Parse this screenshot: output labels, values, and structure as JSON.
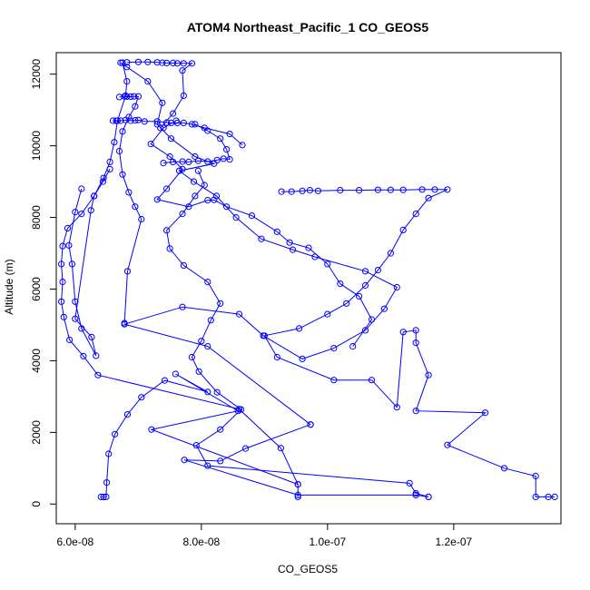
{
  "chart_data": {
    "type": "line",
    "title": "ATOM4 Northeast_Pacific_1 CO_GEOS5",
    "xlabel": "CO_GEOS5",
    "ylabel": "Altitude (m)",
    "xlim": [
      5.7e-08,
      1.37e-07
    ],
    "ylim": [
      -550,
      12600
    ],
    "x_ticks": [
      6e-08,
      8e-08,
      1e-07,
      1.2e-07
    ],
    "x_tick_labels": [
      "6.0e-08",
      "8.0e-08",
      "1.0e-07",
      "1.2e-07"
    ],
    "y_ticks": [
      0,
      2000,
      4000,
      6000,
      8000,
      10000,
      12000
    ],
    "y_tick_labels": [
      "0",
      "2000",
      "4000",
      "6000",
      "8000",
      "10000",
      "12000"
    ],
    "grid": false,
    "series_color": "#0000ff",
    "marker": "open-circle",
    "series": [
      {
        "points": [
          [
            6.41e-08,
            200
          ],
          [
            6.45e-08,
            200
          ],
          [
            6.49e-08,
            200
          ],
          [
            6.5e-08,
            600
          ],
          [
            6.53e-08,
            1400
          ],
          [
            6.63e-08,
            1950
          ],
          [
            6.83e-08,
            2500
          ],
          [
            7.05e-08,
            2980
          ],
          [
            7.42e-08,
            3450
          ],
          [
            8.1e-08,
            3130
          ],
          [
            7.59e-08,
            3630
          ],
          [
            8.58e-08,
            2600
          ],
          [
            7.21e-08,
            2080
          ],
          [
            9.53e-08,
            550
          ],
          [
            9.53e-08,
            200
          ]
        ]
      },
      {
        "points": [
          [
            9.53e-08,
            550
          ],
          [
            9.26e-08,
            1560
          ],
          [
            8.6e-08,
            2650
          ],
          [
            6.36e-08,
            3600
          ],
          [
            6.13e-08,
            4130
          ],
          [
            5.91e-08,
            4580
          ],
          [
            5.82e-08,
            5220
          ],
          [
            5.78e-08,
            5650
          ],
          [
            5.8e-08,
            6200
          ],
          [
            5.78e-08,
            6700
          ],
          [
            5.8e-08,
            7200
          ],
          [
            5.88e-08,
            7700
          ],
          [
            6.1e-08,
            8100
          ],
          [
            6.3e-08,
            8600
          ],
          [
            6.45e-08,
            9100
          ],
          [
            6.55e-08,
            9550
          ],
          [
            6.62e-08,
            10100
          ],
          [
            6.67e-08,
            10700
          ],
          [
            6.8e-08,
            11400
          ],
          [
            6.82e-08,
            11800
          ],
          [
            6.75e-08,
            12320
          ]
        ]
      },
      {
        "points": [
          [
            6.72e-08,
            12320
          ],
          [
            6.82e-08,
            12200
          ],
          [
            7.15e-08,
            11800
          ],
          [
            7.38e-08,
            11200
          ],
          [
            7.3e-08,
            10600
          ],
          [
            7.52e-08,
            10200
          ],
          [
            7.9e-08,
            9700
          ],
          [
            8.2e-08,
            9500
          ],
          [
            7.65e-08,
            9300
          ],
          [
            7.88e-08,
            9000
          ],
          [
            8.24e-08,
            8600
          ],
          [
            8.55e-08,
            8000
          ],
          [
            8.95e-08,
            7400
          ],
          [
            9.45e-08,
            7100
          ],
          [
            9.8e-08,
            6900
          ],
          [
            1.06e-07,
            6500
          ],
          [
            1.11e-07,
            6050
          ],
          [
            1.09e-07,
            5450
          ],
          [
            1.06e-07,
            4850
          ],
          [
            1.01e-07,
            4350
          ],
          [
            9.6e-08,
            4050
          ],
          [
            8.98e-08,
            4700
          ],
          [
            8.6e-08,
            5300
          ],
          [
            7.7e-08,
            5500
          ],
          [
            6.78e-08,
            5020
          ],
          [
            8.1e-08,
            4400
          ],
          [
            9.73e-08,
            2220
          ]
        ]
      },
      {
        "points": [
          [
            9.73e-08,
            2220
          ],
          [
            8.7e-08,
            1550
          ],
          [
            8.3e-08,
            1200
          ],
          [
            7.73e-08,
            1230
          ],
          [
            9.53e-08,
            250
          ],
          [
            1.14e-07,
            250
          ],
          [
            1.16e-07,
            200
          ]
        ]
      },
      {
        "points": [
          [
            1.16e-07,
            200
          ],
          [
            1.14e-07,
            300
          ],
          [
            1.13e-07,
            580
          ],
          [
            8.1e-08,
            1070
          ],
          [
            7.92e-08,
            1640
          ],
          [
            8.3e-08,
            2080
          ],
          [
            8.63e-08,
            2640
          ],
          [
            8.25e-08,
            3120
          ],
          [
            7.96e-08,
            3700
          ],
          [
            7.85e-08,
            4100
          ],
          [
            8e-08,
            4550
          ],
          [
            8.15e-08,
            5130
          ],
          [
            8.3e-08,
            5600
          ],
          [
            8.1e-08,
            6200
          ],
          [
            7.72e-08,
            6660
          ],
          [
            7.5e-08,
            7130
          ],
          [
            7.45e-08,
            7640
          ],
          [
            7.7e-08,
            8100
          ],
          [
            7.9e-08,
            8600
          ],
          [
            8.05e-08,
            8900
          ],
          [
            7.95e-08,
            9300
          ]
        ]
      },
      {
        "points": [
          [
            7.4e-08,
            9520
          ],
          [
            7.55e-08,
            9550
          ],
          [
            7.7e-08,
            9560
          ],
          [
            7.8e-08,
            9550
          ],
          [
            7.95e-08,
            9580
          ],
          [
            8.1e-08,
            9560
          ],
          [
            8.25e-08,
            9600
          ],
          [
            8.35e-08,
            9640
          ],
          [
            8.45e-08,
            9620
          ],
          [
            8.4e-08,
            9900
          ],
          [
            8.3e-08,
            10200
          ],
          [
            8.1e-08,
            10420
          ],
          [
            7.9e-08,
            10600
          ]
        ]
      },
      {
        "points": [
          [
            9.27e-08,
            8720
          ],
          [
            9.43e-08,
            8720
          ],
          [
            9.6e-08,
            8740
          ],
          [
            9.72e-08,
            8760
          ],
          [
            9.85e-08,
            8740
          ],
          [
            1.02e-07,
            8760
          ],
          [
            1.05e-07,
            8760
          ],
          [
            1.08e-07,
            8770
          ],
          [
            1.1e-07,
            8770
          ],
          [
            1.12e-07,
            8770
          ],
          [
            1.15e-07,
            8780
          ],
          [
            1.17e-07,
            8780
          ],
          [
            1.19e-07,
            8780
          ],
          [
            1.16e-07,
            8540
          ],
          [
            1.14e-07,
            8100
          ],
          [
            1.12e-07,
            7650
          ],
          [
            1.1e-07,
            7000
          ],
          [
            1.08e-07,
            6530
          ],
          [
            1.06e-07,
            6100
          ],
          [
            1.03e-07,
            5600
          ],
          [
            1e-07,
            5300
          ],
          [
            9.55e-08,
            4900
          ],
          [
            9e-08,
            4700
          ],
          [
            9.2e-08,
            4100
          ],
          [
            1.01e-07,
            3460
          ],
          [
            1.07e-07,
            3460
          ],
          [
            1.11e-07,
            2700
          ],
          [
            1.12e-07,
            4800
          ],
          [
            1.14e-07,
            4850
          ],
          [
            1.14e-07,
            4500
          ],
          [
            1.16e-07,
            3600
          ],
          [
            1.14e-07,
            2600
          ],
          [
            1.25e-07,
            2550
          ],
          [
            1.19e-07,
            1650
          ],
          [
            1.28e-07,
            1000
          ],
          [
            1.33e-07,
            780
          ],
          [
            1.33e-07,
            200
          ],
          [
            1.35e-07,
            200
          ],
          [
            1.36e-07,
            200
          ]
        ]
      },
      {
        "points": [
          [
            7.6e-08,
            10700
          ],
          [
            7.4e-08,
            10500
          ],
          [
            7.2e-08,
            10050
          ],
          [
            7.5e-08,
            9700
          ],
          [
            7.7e-08,
            9350
          ],
          [
            7.45e-08,
            8800
          ],
          [
            7.3e-08,
            8500
          ],
          [
            7.8e-08,
            8300
          ],
          [
            8.1e-08,
            8480
          ],
          [
            8.2e-08,
            8490
          ],
          [
            8.4e-08,
            8300
          ],
          [
            8.8e-08,
            8050
          ],
          [
            9.2e-08,
            7600
          ],
          [
            9.4e-08,
            7300
          ],
          [
            9.7e-08,
            7150
          ],
          [
            1e-07,
            6700
          ],
          [
            1.02e-07,
            6150
          ],
          [
            1.05e-07,
            5800
          ],
          [
            1.07e-07,
            5150
          ],
          [
            1.04e-07,
            4400
          ]
        ]
      },
      {
        "points": [
          [
            6.1e-08,
            8800
          ],
          [
            6e-08,
            8150
          ],
          [
            5.9e-08,
            7220
          ],
          [
            5.95e-08,
            6700
          ],
          [
            6e-08,
            5650
          ],
          [
            6.1e-08,
            4900
          ],
          [
            6.33e-08,
            4140
          ],
          [
            6.26e-08,
            4660
          ],
          [
            6e-08,
            5170
          ],
          [
            6.25e-08,
            8200
          ],
          [
            6.3e-08,
            8600
          ],
          [
            6.44e-08,
            9000
          ],
          [
            6.55e-08,
            9350
          ]
        ]
      },
      {
        "points": [
          [
            6.6e-08,
            10700
          ],
          [
            6.65e-08,
            10700
          ],
          [
            6.72e-08,
            10700
          ],
          [
            6.8e-08,
            10720
          ],
          [
            6.88e-08,
            10700
          ],
          [
            6.95e-08,
            10710
          ],
          [
            7e-08,
            10720
          ],
          [
            7.1e-08,
            10680
          ],
          [
            7.3e-08,
            10680
          ],
          [
            7.45e-08,
            10650
          ],
          [
            7.52e-08,
            10640
          ],
          [
            7.62e-08,
            10640
          ],
          [
            7.72e-08,
            10640
          ],
          [
            7.85e-08,
            10600
          ],
          [
            8.05e-08,
            10500
          ],
          [
            8.45e-08,
            10330
          ],
          [
            8.65e-08,
            10020
          ]
        ]
      },
      {
        "points": [
          [
            6.7e-08,
            11360
          ],
          [
            6.78e-08,
            11380
          ],
          [
            6.82e-08,
            11370
          ],
          [
            6.88e-08,
            11370
          ],
          [
            6.93e-08,
            11380
          ],
          [
            7e-08,
            11380
          ],
          [
            6.95e-08,
            11100
          ],
          [
            6.85e-08,
            10800
          ],
          [
            6.75e-08,
            10400
          ],
          [
            6.7e-08,
            9850
          ],
          [
            6.75e-08,
            9200
          ],
          [
            6.85e-08,
            8700
          ],
          [
            6.95e-08,
            8300
          ],
          [
            7.05e-08,
            7950
          ],
          [
            6.83e-08,
            6500
          ],
          [
            6.78e-08,
            5050
          ]
        ]
      },
      {
        "points": [
          [
            6.82e-08,
            12330
          ],
          [
            7e-08,
            12340
          ],
          [
            7.15e-08,
            12340
          ],
          [
            7.3e-08,
            12330
          ],
          [
            7.38e-08,
            12320
          ],
          [
            7.45e-08,
            12310
          ],
          [
            7.55e-08,
            12310
          ],
          [
            7.62e-08,
            12300
          ],
          [
            7.72e-08,
            12300
          ],
          [
            7.85e-08,
            12300
          ],
          [
            7.7e-08,
            12100
          ],
          [
            7.72e-08,
            11400
          ],
          [
            7.55e-08,
            10900
          ],
          [
            7.35e-08,
            10500
          ]
        ]
      }
    ]
  }
}
